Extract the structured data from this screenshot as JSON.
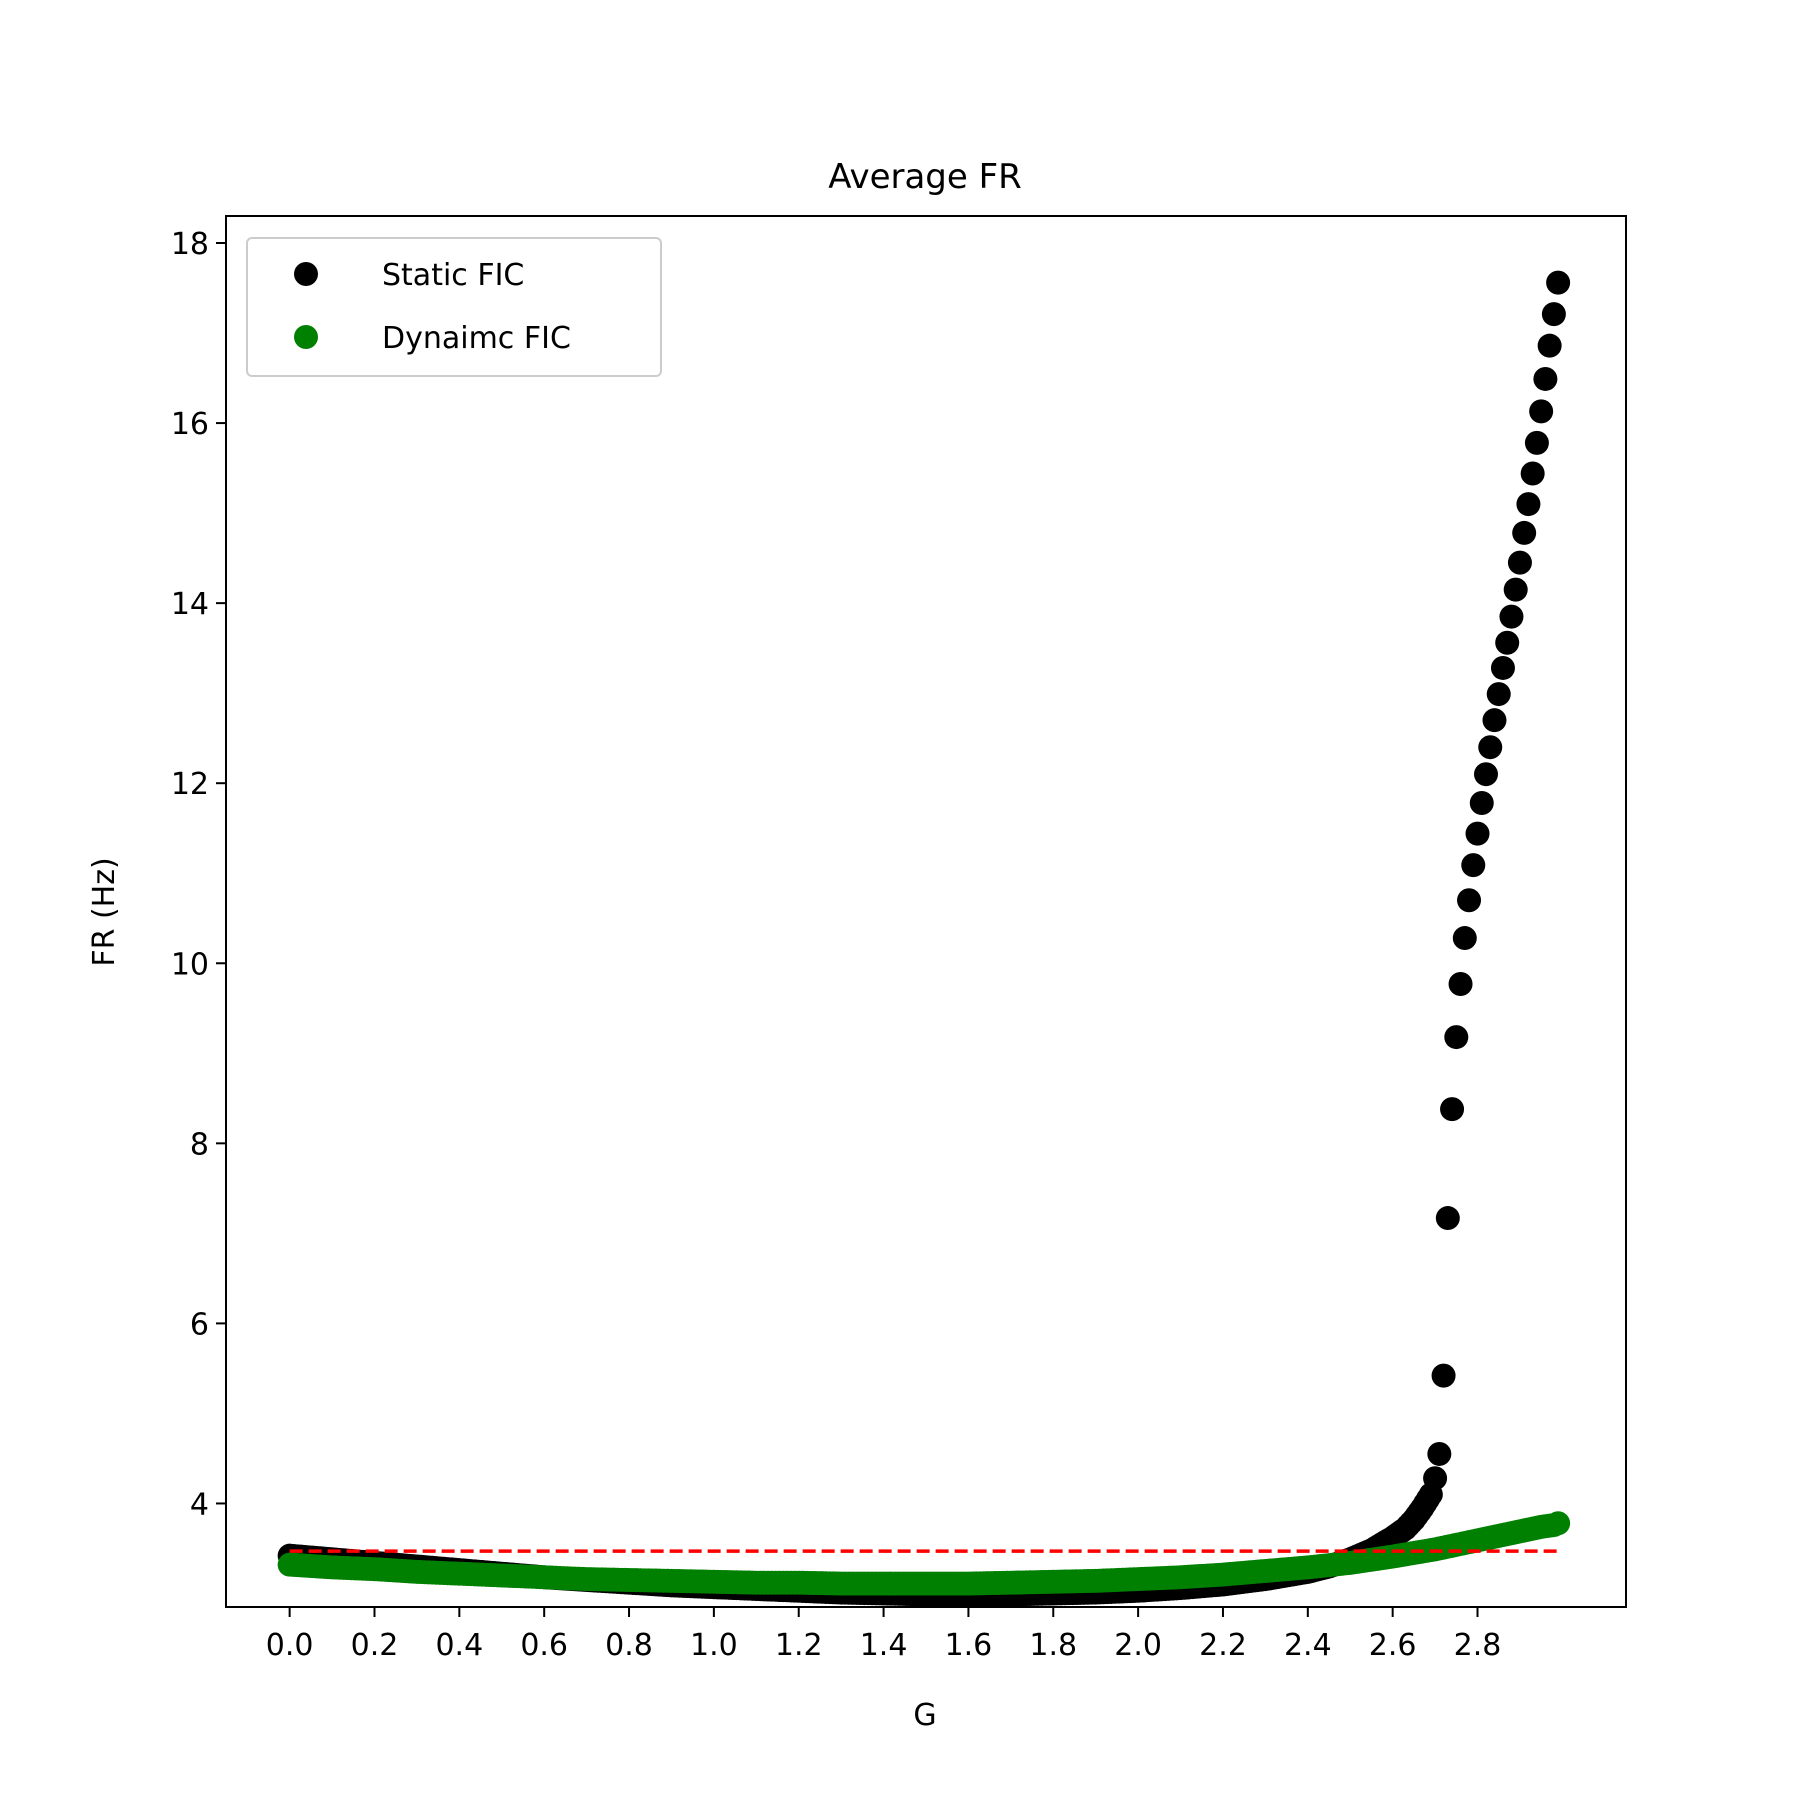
{
  "chart_data": {
    "type": "scatter",
    "title": "Average FR",
    "xlabel": "G",
    "ylabel": "FR (Hz)",
    "xlim": [
      -0.15,
      3.15
    ],
    "ylim": [
      2.85,
      18.3
    ],
    "xticks": [
      0.0,
      0.2,
      0.4,
      0.6,
      0.8,
      1.0,
      1.2,
      1.4,
      1.6,
      1.8,
      2.0,
      2.2,
      2.4,
      2.6,
      2.8
    ],
    "xtick_labels": [
      "0.0",
      "0.2",
      "0.4",
      "0.6",
      "0.8",
      "1.0",
      "1.2",
      "1.4",
      "1.6",
      "1.8",
      "2.0",
      "2.2",
      "2.4",
      "2.6",
      "2.8"
    ],
    "yticks": [
      4,
      6,
      8,
      10,
      12,
      14,
      16,
      18
    ],
    "ytick_labels": [
      "4",
      "6",
      "8",
      "10",
      "12",
      "14",
      "16",
      "18"
    ],
    "grid": false,
    "legend_position": "top-left",
    "series": [
      {
        "name": "Static FIC",
        "color": "#000000",
        "x": [
          0.0,
          0.1,
          0.2,
          0.3,
          0.4,
          0.5,
          0.6,
          0.7,
          0.8,
          0.9,
          1.0,
          1.1,
          1.2,
          1.3,
          1.4,
          1.5,
          1.6,
          1.7,
          1.8,
          1.9,
          2.0,
          2.1,
          2.2,
          2.3,
          2.4,
          2.45,
          2.5,
          2.55,
          2.6,
          2.63,
          2.65,
          2.67,
          2.69,
          2.7,
          2.71,
          2.72,
          2.73,
          2.74,
          2.75,
          2.76,
          2.77,
          2.78,
          2.79,
          2.8,
          2.81,
          2.82,
          2.83,
          2.84,
          2.85,
          2.86,
          2.87,
          2.88,
          2.89,
          2.9,
          2.91,
          2.92,
          2.93,
          2.94,
          2.95,
          2.96,
          2.97,
          2.98,
          2.99
        ],
        "y": [
          3.42,
          3.38,
          3.34,
          3.3,
          3.26,
          3.22,
          3.18,
          3.15,
          3.12,
          3.09,
          3.07,
          3.05,
          3.03,
          3.01,
          3.0,
          2.99,
          2.99,
          2.99,
          3.0,
          3.01,
          3.03,
          3.06,
          3.1,
          3.16,
          3.24,
          3.3,
          3.38,
          3.48,
          3.62,
          3.72,
          3.82,
          3.95,
          4.1,
          4.28,
          4.55,
          5.42,
          7.17,
          8.38,
          9.18,
          9.77,
          10.28,
          10.7,
          11.09,
          11.44,
          11.78,
          12.1,
          12.4,
          12.7,
          12.99,
          13.28,
          13.56,
          13.85,
          14.15,
          14.45,
          14.78,
          15.1,
          15.44,
          15.78,
          16.13,
          16.49,
          16.86,
          17.21,
          17.56
        ]
      },
      {
        "name": "Dynaimc FIC",
        "color": "#008000",
        "x": [
          0.0,
          0.1,
          0.2,
          0.3,
          0.4,
          0.5,
          0.6,
          0.7,
          0.8,
          0.9,
          1.0,
          1.1,
          1.2,
          1.3,
          1.4,
          1.5,
          1.6,
          1.7,
          1.8,
          1.9,
          2.0,
          2.1,
          2.2,
          2.3,
          2.4,
          2.5,
          2.6,
          2.7,
          2.8,
          2.85,
          2.9,
          2.95,
          2.98,
          2.99
        ],
        "y": [
          3.32,
          3.29,
          3.27,
          3.24,
          3.22,
          3.2,
          3.18,
          3.16,
          3.15,
          3.14,
          3.13,
          3.12,
          3.12,
          3.11,
          3.11,
          3.11,
          3.11,
          3.12,
          3.13,
          3.14,
          3.16,
          3.18,
          3.21,
          3.25,
          3.29,
          3.34,
          3.41,
          3.49,
          3.59,
          3.64,
          3.69,
          3.74,
          3.76,
          3.78
        ]
      }
    ],
    "reference_line": {
      "y": 3.47,
      "x": [
        0.0,
        3.0
      ],
      "color": "#ff0000",
      "style": "dashed"
    }
  }
}
